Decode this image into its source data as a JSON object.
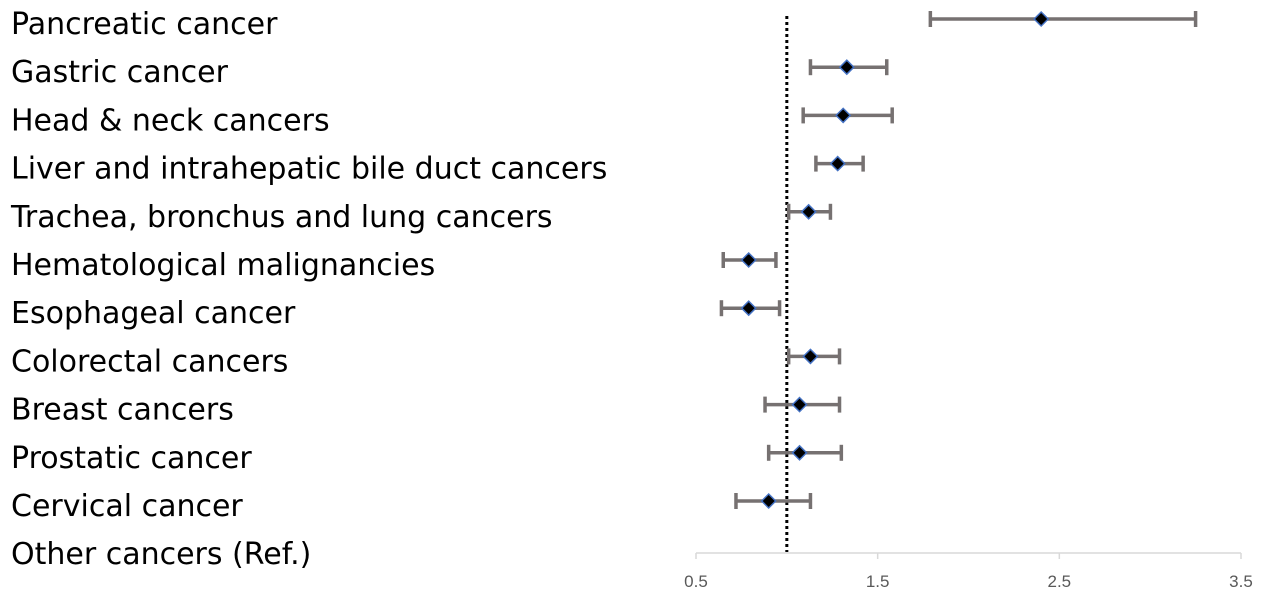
{
  "chart_data": {
    "type": "forest",
    "title": "",
    "xlabel": "",
    "ylabel": "",
    "xlim": [
      0.5,
      3.5
    ],
    "x_ticks": [
      "0.5",
      "1.5",
      "2.5",
      "3.5"
    ],
    "x_tick_values": [
      0.5,
      1.5,
      2.5,
      3.5
    ],
    "reference_line": 1.0,
    "grid": false,
    "legend": "none",
    "colors": {
      "marker_fill": "#000000",
      "marker_edge": "#4472C4",
      "error_bar": "#767171",
      "reference_line": "#000000",
      "axis": "#D9D9D9",
      "tick_text": "#595959"
    },
    "categories": [
      "Pancreatic cancer",
      "Gastric cancer",
      "Head & neck cancers",
      "Liver and intrahepatic bile duct cancers",
      "Trachea, bronchus and lung cancers",
      "Hematological malignancies",
      "Esophageal cancer",
      "Colorectal cancers",
      "Breast cancers",
      "Prostatic cancer",
      "Cervical cancer",
      "Other cancers (Ref.)"
    ],
    "values": [
      2.4,
      1.33,
      1.31,
      1.28,
      1.12,
      0.79,
      0.79,
      1.13,
      1.07,
      1.07,
      0.9,
      null
    ],
    "lower": [
      1.79,
      1.13,
      1.09,
      1.16,
      1.01,
      0.65,
      0.64,
      1.01,
      0.88,
      0.9,
      0.72,
      null
    ],
    "upper": [
      3.25,
      1.55,
      1.58,
      1.42,
      1.24,
      0.94,
      0.96,
      1.29,
      1.29,
      1.3,
      1.13,
      null
    ]
  }
}
